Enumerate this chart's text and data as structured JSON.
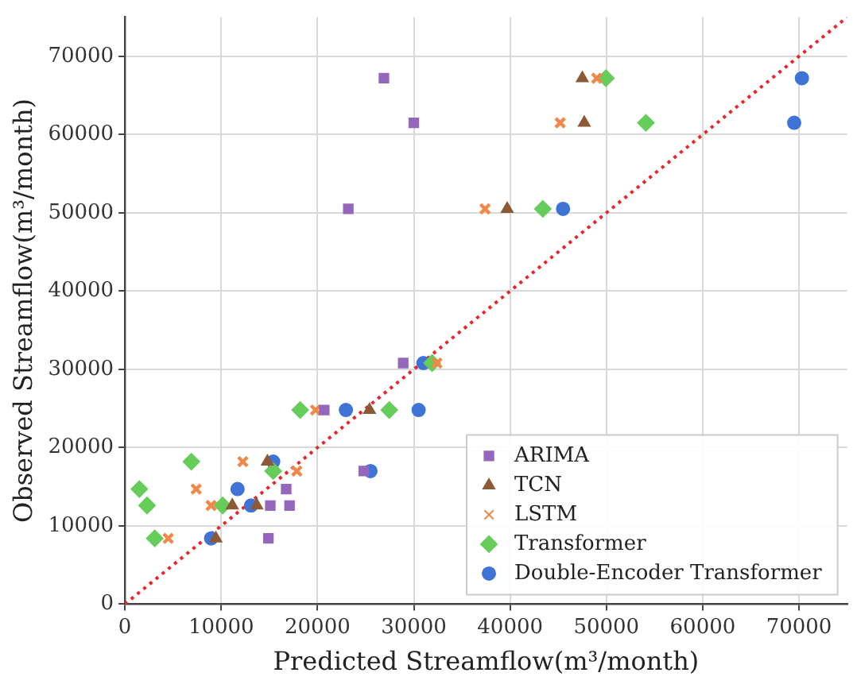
{
  "chart_data": {
    "type": "scatter",
    "xlabel": "Predicted Streamflow(m³/month)",
    "ylabel": "Observed Streamflow(m³/month)",
    "xlim": [
      0,
      75000
    ],
    "ylim": [
      0,
      75000
    ],
    "xticks": [
      0,
      10000,
      20000,
      30000,
      40000,
      50000,
      60000,
      70000
    ],
    "yticks": [
      0,
      10000,
      20000,
      30000,
      40000,
      50000,
      60000,
      70000
    ],
    "grid": true,
    "legend": "bottom right",
    "series": [
      {
        "name": "ARIMA",
        "color": "#9467bd",
        "marker": "square",
        "x": [
          26900,
          30000,
          23200,
          28900,
          20700,
          24800,
          16750,
          15100,
          17100,
          14900
        ],
        "values": [
          67200,
          61500,
          50500,
          30800,
          24800,
          17000,
          14700,
          12600,
          12600,
          8400
        ]
      },
      {
        "name": "TCN",
        "color": "#8c5a36",
        "marker": "triangle",
        "x": [
          47500,
          47700,
          39700,
          25400,
          14800,
          11150,
          13700,
          9450
        ],
        "values": [
          67200,
          61500,
          50500,
          24800,
          18200,
          12600,
          12600,
          8400
        ]
      },
      {
        "name": "LSTM",
        "color": "#f0884a",
        "marker": "cross",
        "x": [
          49000,
          45200,
          37400,
          32400,
          19800,
          12250,
          17850,
          7400,
          8950,
          4500
        ],
        "values": [
          67200,
          61500,
          50500,
          30800,
          24800,
          18200,
          17000,
          14700,
          12600,
          8400
        ]
      },
      {
        "name": "Transformer",
        "color": "#66cc5a",
        "marker": "diamond",
        "x": [
          49950,
          54100,
          43400,
          31900,
          18200,
          27450,
          6900,
          15400,
          1500,
          2300,
          10150,
          3100
        ],
        "values": [
          67200,
          61500,
          50500,
          30800,
          24800,
          24800,
          18200,
          17000,
          14700,
          12600,
          12600,
          8400
        ]
      },
      {
        "name": "Double-Encoder Transformer",
        "color": "#3f74d6",
        "marker": "circle",
        "x": [
          70300,
          69500,
          45500,
          31000,
          22950,
          30500,
          15400,
          25500,
          11700,
          13100,
          8950
        ],
        "values": [
          67200,
          61500,
          50500,
          30800,
          24800,
          24800,
          18200,
          17000,
          14700,
          12600,
          8400
        ]
      },
      {
        "type": "line",
        "color": "#e8262a",
        "marker": "none",
        "line_style": "dotted",
        "x": [
          0,
          75000
        ],
        "values": [
          0,
          75000
        ]
      }
    ]
  }
}
